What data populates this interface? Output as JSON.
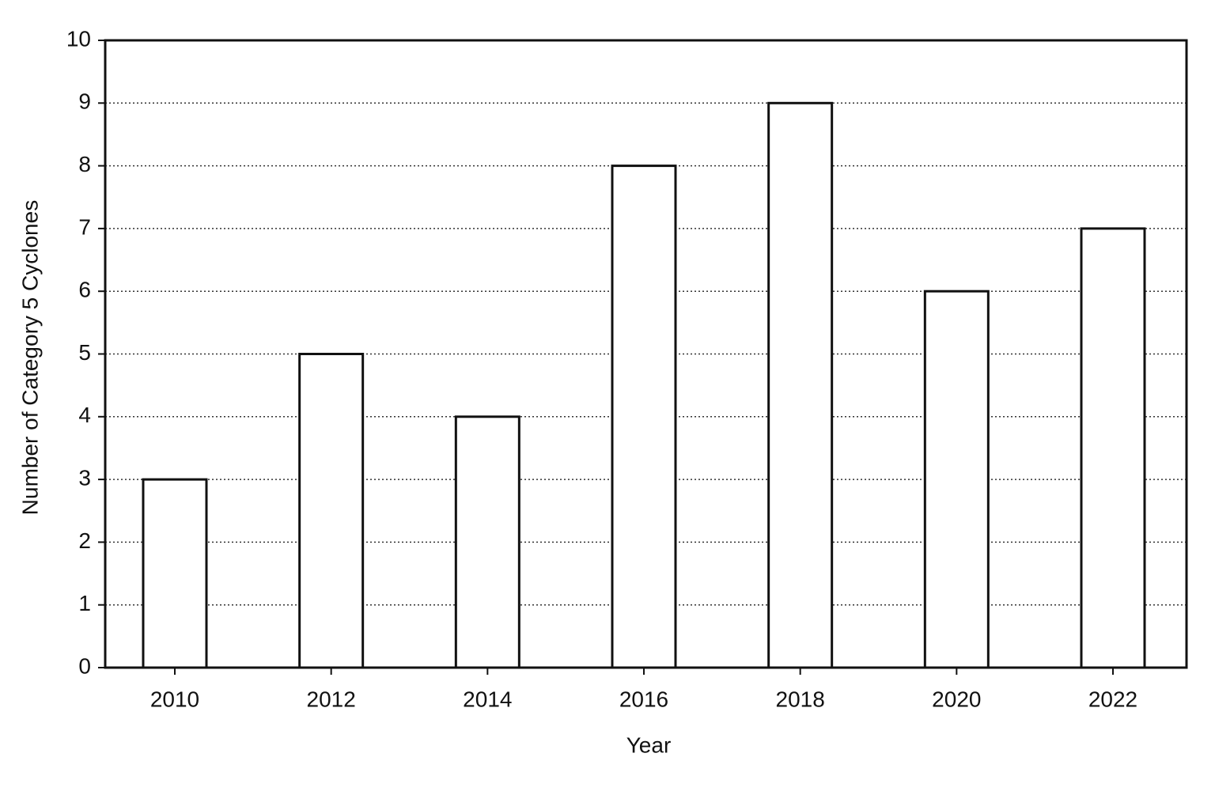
{
  "chart_data": {
    "type": "bar",
    "x_label": "Year",
    "y_label": "Number of Category 5 Cyclones",
    "categories": [
      "2010",
      "2012",
      "2014",
      "2016",
      "2018",
      "2020",
      "2022"
    ],
    "values": [
      3,
      5,
      4,
      8,
      9,
      6,
      7
    ],
    "color": "#ffffff",
    "ylim": [
      0,
      10
    ],
    "yticks": [
      0,
      1,
      2,
      3,
      4,
      5,
      6,
      7,
      8,
      9,
      10
    ],
    "grid": true
  }
}
